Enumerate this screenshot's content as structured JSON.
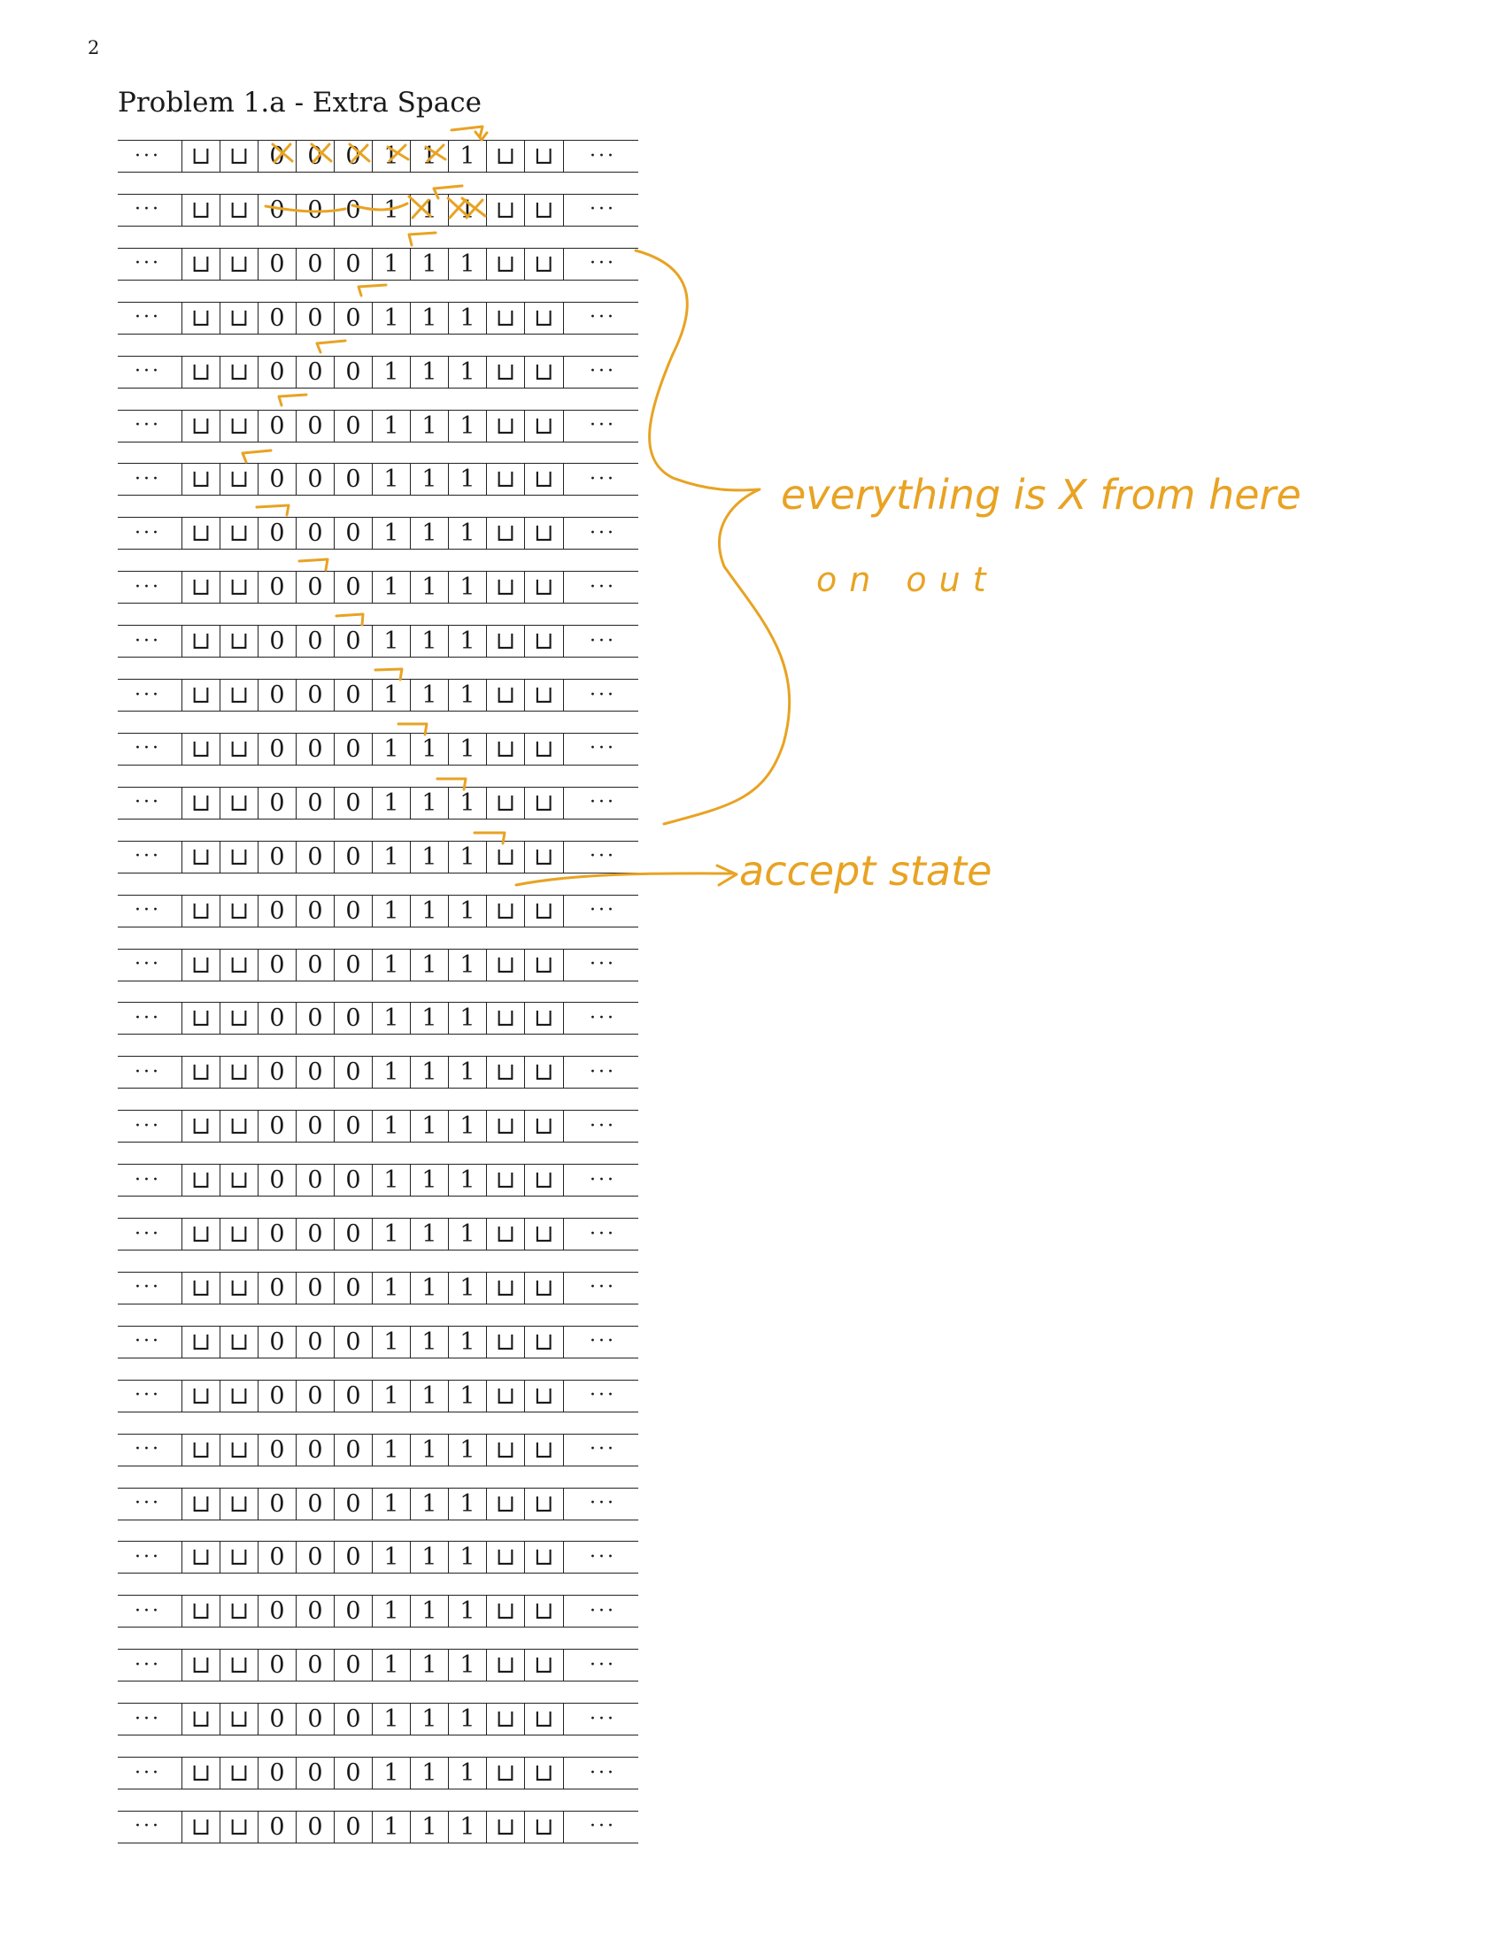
{
  "page_number": "2",
  "title": "Problem 1.a - Extra Space",
  "tape": {
    "ellipsis": "···",
    "symbols": [
      "⊔",
      "⊔",
      "0",
      "0",
      "0",
      "1",
      "1",
      "1",
      "⊔",
      "⊔"
    ],
    "row_count": 32
  },
  "annotations": {
    "ink_color": "#e8a323",
    "brace_note_line1": "everything is X from here",
    "brace_note_line2": "on out",
    "accept_note": "accept state"
  }
}
